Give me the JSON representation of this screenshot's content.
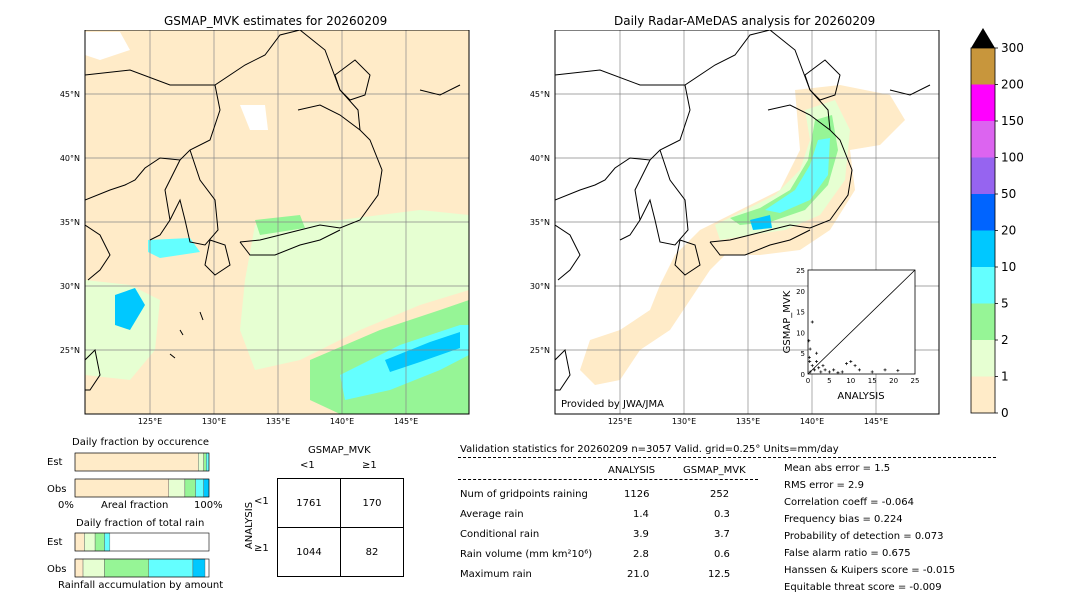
{
  "left_map": {
    "title": "GSMAP_MVK estimates for 20260209",
    "lat_ticks": [
      "45°N",
      "40°N",
      "35°N",
      "30°N",
      "25°N"
    ],
    "lon_ticks": [
      "125°E",
      "130°E",
      "135°E",
      "140°E",
      "145°E"
    ]
  },
  "right_map": {
    "title": "Daily Radar-AMeDAS analysis for 20260209",
    "lat_ticks": [
      "45°N",
      "40°N",
      "35°N",
      "30°N",
      "25°N"
    ],
    "lon_ticks": [
      "125°E",
      "130°E",
      "135°E",
      "140°E",
      "145°E"
    ],
    "provider": "Provided by JWA/JMA"
  },
  "scatter": {
    "ylabel": "GSMAP_MVK",
    "xlabel": "ANALYSIS",
    "ticks": [
      "0",
      "5",
      "10",
      "15",
      "20",
      "25"
    ]
  },
  "colorbar": {
    "labels": [
      "300",
      "200",
      "150",
      "100",
      "50",
      "20",
      "10",
      "5",
      "2",
      "1",
      "0"
    ],
    "colors": [
      "#c8963c",
      "#ff00ff",
      "#dc64f0",
      "#9664f0",
      "#0064ff",
      "#00c8ff",
      "#64ffff",
      "#96f596",
      "#e6ffd2",
      "#ffebc8"
    ],
    "top_color": "#000000"
  },
  "occurrence": {
    "title": "Daily fraction by occurence",
    "row_est": "Est",
    "row_obs": "Obs",
    "axis_left": "0%",
    "axis_mid": "Areal fraction",
    "axis_right": "100%"
  },
  "rain": {
    "title": "Daily fraction of total rain",
    "row_est": "Est",
    "row_obs": "Obs",
    "axis_label": "Rainfall accumulation by amount"
  },
  "contingency": {
    "title": "GSMAP_MVK",
    "col_lt": "<1",
    "col_ge": "≥1",
    "row_axis": "ANALYSIS",
    "row_lt": "<1",
    "row_ge": "≥1",
    "cells": [
      "1761",
      "170",
      "1044",
      "82"
    ]
  },
  "validation": {
    "header": "Validation statistics for 20260209  n=3057 Valid. grid=0.25° Units=mm/day",
    "col_analysis": "ANALYSIS",
    "col_gsmap": "GSMAP_MVK",
    "rows": [
      {
        "label": "Num of gridpoints raining",
        "analysis": "1126",
        "gsmap": "252"
      },
      {
        "label": "Average rain",
        "analysis": "1.4",
        "gsmap": "0.3"
      },
      {
        "label": "Conditional rain",
        "analysis": "3.9",
        "gsmap": "3.7"
      },
      {
        "label": "Rain volume (mm km²10⁶)",
        "analysis": "2.8",
        "gsmap": "0.6"
      },
      {
        "label": "Maximum rain",
        "analysis": "21.0",
        "gsmap": "12.5"
      }
    ],
    "scores": [
      "Mean abs error =    1.5",
      "RMS error =    2.9",
      "Correlation coeff = -0.064",
      "Frequency bias =  0.224",
      "Probability of detection =  0.073",
      "False alarm ratio =  0.675",
      "Hanssen & Kuipers score = -0.015",
      "Equitable threat score = -0.009"
    ]
  },
  "chart_data": [
    {
      "type": "scatter",
      "xlabel": "ANALYSIS",
      "ylabel": "GSMAP_MVK",
      "xlim": [
        0,
        25
      ],
      "ylim": [
        0,
        25
      ],
      "points": [
        {
          "x": 0.5,
          "y": 0.5
        },
        {
          "x": 1,
          "y": 2
        },
        {
          "x": 1.5,
          "y": 1
        },
        {
          "x": 2,
          "y": 3
        },
        {
          "x": 2.5,
          "y": 1.5
        },
        {
          "x": 3,
          "y": 0.5
        },
        {
          "x": 0.3,
          "y": 4
        },
        {
          "x": 0.5,
          "y": 6
        },
        {
          "x": 0.2,
          "y": 8
        },
        {
          "x": 0.4,
          "y": 3
        },
        {
          "x": 3.5,
          "y": 2
        },
        {
          "x": 4,
          "y": 1
        },
        {
          "x": 5,
          "y": 0.5
        },
        {
          "x": 6,
          "y": 1
        },
        {
          "x": 7,
          "y": 0.3
        },
        {
          "x": 8,
          "y": 0.5
        },
        {
          "x": 9,
          "y": 2.5
        },
        {
          "x": 10,
          "y": 3
        },
        {
          "x": 11,
          "y": 2
        },
        {
          "x": 12,
          "y": 1
        },
        {
          "x": 15,
          "y": 0.5
        },
        {
          "x": 18,
          "y": 1
        },
        {
          "x": 21,
          "y": 0.8
        },
        {
          "x": 1,
          "y": 12.5
        },
        {
          "x": 2,
          "y": 5
        }
      ]
    },
    {
      "type": "bar",
      "title": "Daily fraction by occurence",
      "categories": [
        "Est",
        "Obs"
      ],
      "series": [
        {
          "values": [
            0.92,
            0.7
          ]
        },
        {
          "values": [
            0.04,
            0.12
          ]
        },
        {
          "values": [
            0.02,
            0.08
          ]
        },
        {
          "values": [
            0.02,
            0.06
          ]
        },
        {
          "values": [
            0.0,
            0.04
          ]
        }
      ]
    },
    {
      "type": "bar",
      "title": "Daily fraction of total rain",
      "categories": [
        "Est",
        "Obs"
      ],
      "series": [
        {
          "values": [
            0.07,
            0.06
          ]
        },
        {
          "values": [
            0.08,
            0.16
          ]
        },
        {
          "values": [
            0.07,
            0.33
          ]
        },
        {
          "values": [
            0.04,
            0.33
          ]
        },
        {
          "values": [
            0.0,
            0.09
          ]
        }
      ]
    }
  ]
}
